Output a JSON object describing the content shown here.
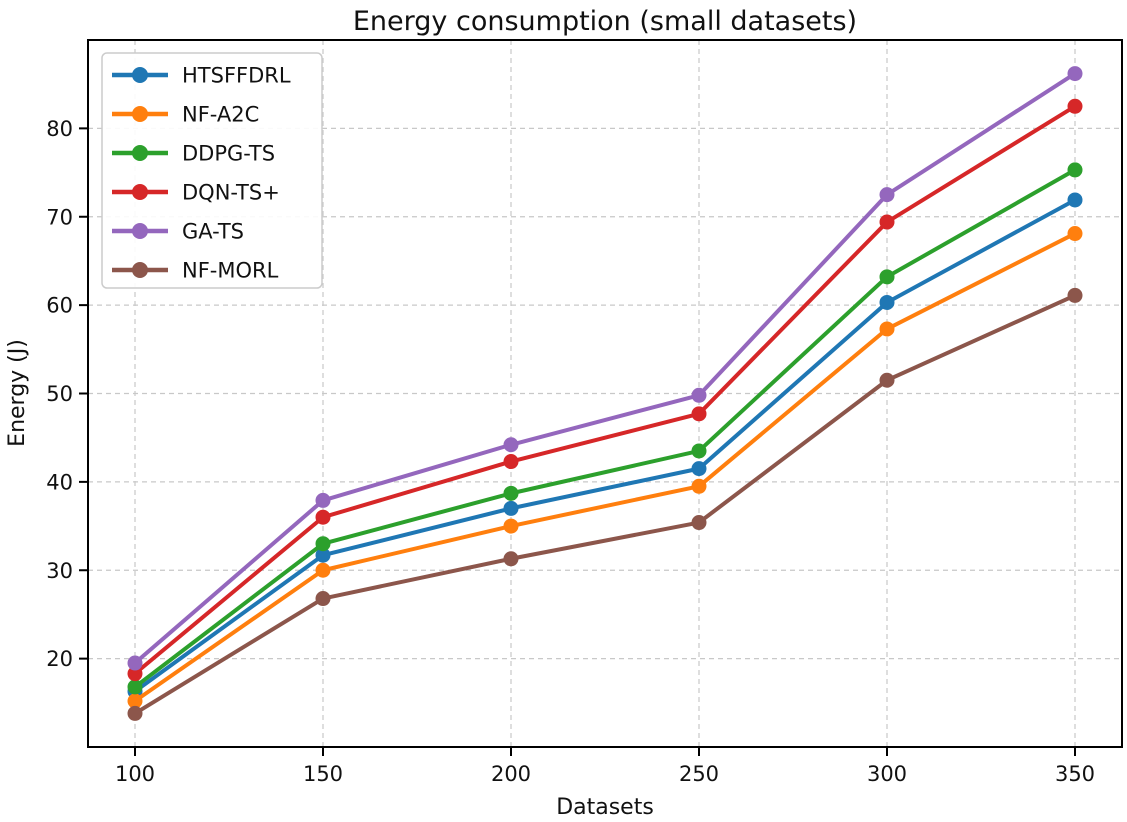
{
  "chart_data": {
    "type": "line",
    "title": "Energy consumption (small datasets)",
    "xlabel": "Datasets",
    "ylabel": "Energy (J)",
    "x": [
      100,
      150,
      200,
      250,
      300,
      350
    ],
    "series": [
      {
        "name": "HTSFFDRL",
        "color": "#1f77b4",
        "values": [
          16.3,
          31.7,
          37.0,
          41.5,
          60.3,
          71.9
        ]
      },
      {
        "name": "NF-A2C",
        "color": "#ff7f0e",
        "values": [
          15.2,
          30.0,
          35.0,
          39.5,
          57.3,
          68.1
        ]
      },
      {
        "name": "DDPG-TS",
        "color": "#2ca02c",
        "values": [
          16.8,
          33.0,
          38.7,
          43.5,
          63.2,
          75.3
        ]
      },
      {
        "name": "DQN-TS+",
        "color": "#d62728",
        "values": [
          18.3,
          36.0,
          42.3,
          47.7,
          69.4,
          82.5
        ]
      },
      {
        "name": "GA-TS",
        "color": "#9467bd",
        "values": [
          19.5,
          37.9,
          44.2,
          49.8,
          72.5,
          86.2
        ]
      },
      {
        "name": "NF-MORL",
        "color": "#8c564b",
        "values": [
          13.8,
          26.8,
          31.3,
          35.4,
          51.5,
          61.1
        ]
      }
    ],
    "x_ticks": [
      100,
      150,
      200,
      250,
      300,
      350
    ],
    "y_ticks": [
      20,
      30,
      40,
      50,
      60,
      70,
      80
    ],
    "xlim": [
      87.5,
      362.5
    ],
    "ylim": [
      10,
      90
    ],
    "grid": true,
    "grid_style": "dashed",
    "grid_color": "#c8c8c8",
    "axis_color": "#000000",
    "background": "#ffffff",
    "legend_position": "upper left",
    "marker": "circle",
    "line_width": 4,
    "marker_radius": 7.5
  }
}
